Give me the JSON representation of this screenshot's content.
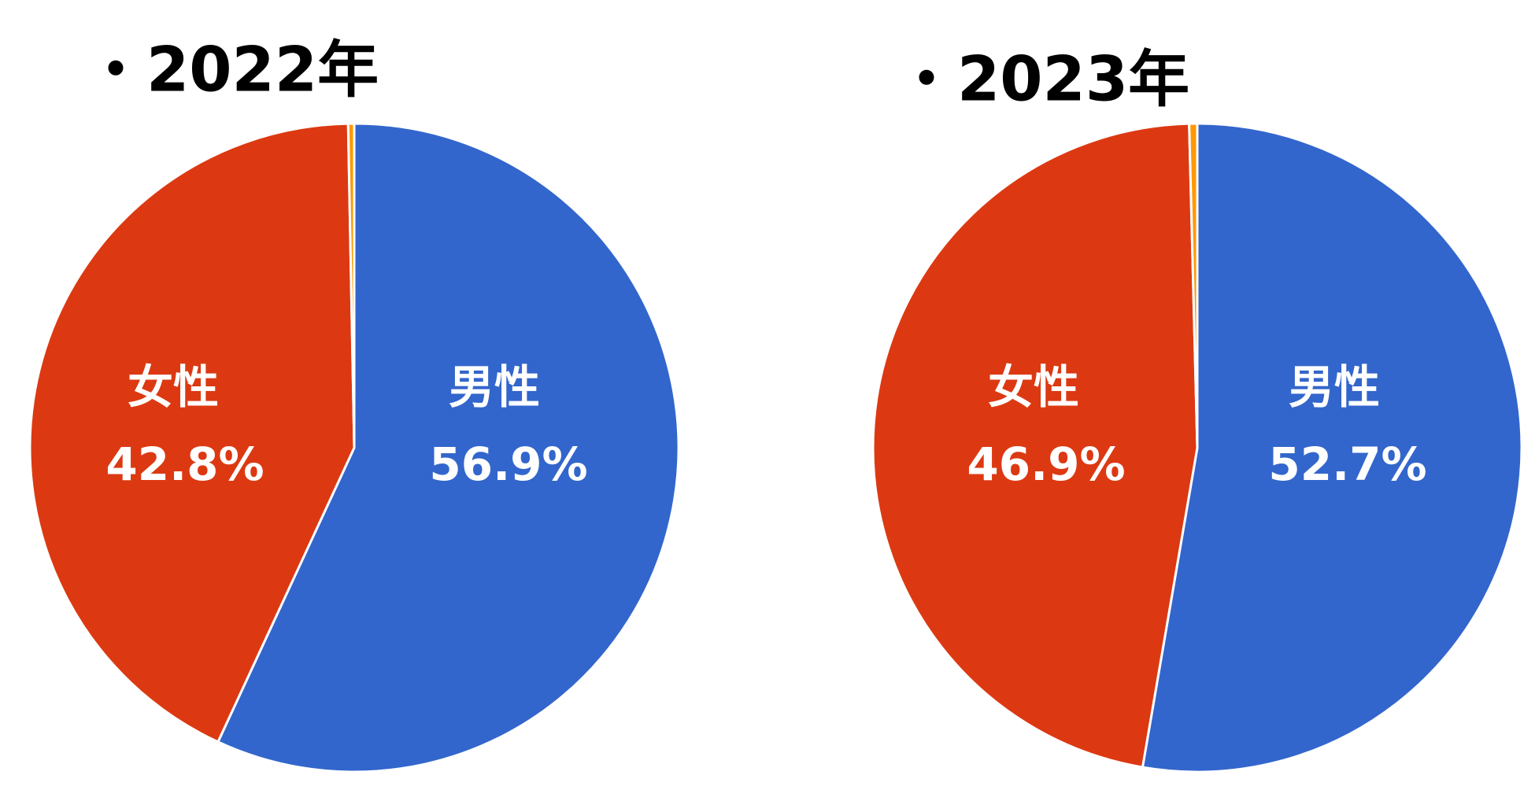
{
  "chart_data": [
    {
      "type": "pie",
      "title": "・2022年",
      "categories": [
        "男性",
        "女性",
        null
      ],
      "values": [
        56.9,
        42.8,
        0.3
      ],
      "value_labels": [
        "56.9%",
        "42.8%",
        null
      ],
      "colors": [
        "#3366cc",
        "#dc3912",
        "#ff9900"
      ]
    },
    {
      "type": "pie",
      "title": "・2023年",
      "categories": [
        "男性",
        "女性",
        null
      ],
      "values": [
        52.7,
        46.9,
        0.4
      ],
      "value_labels": [
        "52.7%",
        "46.9%",
        null
      ],
      "colors": [
        "#3366cc",
        "#dc3912",
        "#ff9900"
      ]
    }
  ]
}
